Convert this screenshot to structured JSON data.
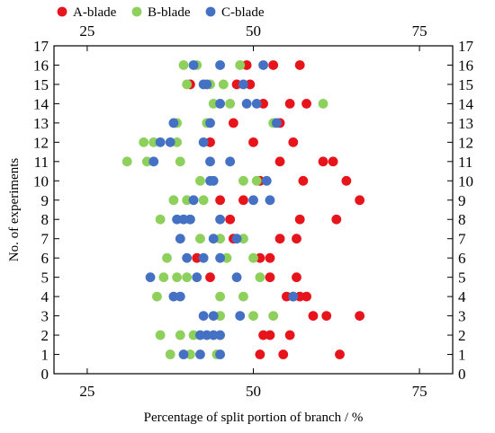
{
  "chart_data": {
    "type": "scatter",
    "xlabel": "Percentage of split portion of branch / %",
    "ylabel": "No. of experiments",
    "xlim": [
      20,
      80
    ],
    "ylim": [
      0,
      17
    ],
    "x_ticks": [
      25,
      50,
      75
    ],
    "y_ticks": [
      0,
      1,
      2,
      3,
      4,
      5,
      6,
      7,
      8,
      9,
      10,
      11,
      12,
      13,
      14,
      15,
      16,
      17
    ],
    "legend_position": "top",
    "grid": false,
    "mirrored_axes": true,
    "series": [
      {
        "name": "A-blade",
        "color": "#e8141b",
        "points": [
          [
            51,
            1
          ],
          [
            54.5,
            1
          ],
          [
            63,
            1
          ],
          [
            51.5,
            2
          ],
          [
            52.5,
            2
          ],
          [
            55.5,
            2
          ],
          [
            59,
            3
          ],
          [
            61,
            3
          ],
          [
            66,
            3
          ],
          [
            55,
            4
          ],
          [
            56,
            4
          ],
          [
            57,
            4
          ],
          [
            58,
            4
          ],
          [
            43.5,
            5
          ],
          [
            52.5,
            5
          ],
          [
            56.5,
            5
          ],
          [
            41.5,
            6
          ],
          [
            51,
            6
          ],
          [
            52.5,
            6
          ],
          [
            47,
            7
          ],
          [
            54,
            7
          ],
          [
            56.5,
            7
          ],
          [
            46.5,
            8
          ],
          [
            57,
            8
          ],
          [
            62.5,
            8
          ],
          [
            45,
            9
          ],
          [
            48.5,
            9
          ],
          [
            66,
            9
          ],
          [
            51,
            10
          ],
          [
            57.5,
            10
          ],
          [
            64,
            10
          ],
          [
            54,
            11
          ],
          [
            60.5,
            11
          ],
          [
            62,
            11
          ],
          [
            43.5,
            12
          ],
          [
            50,
            12
          ],
          [
            56,
            12
          ],
          [
            47,
            13
          ],
          [
            54,
            13
          ],
          [
            51.5,
            14
          ],
          [
            55.5,
            14
          ],
          [
            58,
            14
          ],
          [
            40.5,
            15
          ],
          [
            47.5,
            15
          ],
          [
            49.5,
            15
          ],
          [
            49,
            16
          ],
          [
            53,
            16
          ],
          [
            57,
            16
          ]
        ]
      },
      {
        "name": "B-blade",
        "color": "#8dd05c",
        "points": [
          [
            37.5,
            1
          ],
          [
            40.5,
            1
          ],
          [
            44.5,
            1
          ],
          [
            36,
            2
          ],
          [
            39,
            2
          ],
          [
            41,
            2
          ],
          [
            45,
            3
          ],
          [
            50,
            3
          ],
          [
            53,
            3
          ],
          [
            35.5,
            4
          ],
          [
            45,
            4
          ],
          [
            48.5,
            4
          ],
          [
            36.5,
            5
          ],
          [
            38.5,
            5
          ],
          [
            40,
            5
          ],
          [
            51,
            5
          ],
          [
            37,
            6
          ],
          [
            46,
            6
          ],
          [
            50,
            6
          ],
          [
            42,
            7
          ],
          [
            45,
            7
          ],
          [
            48.5,
            7
          ],
          [
            36,
            8
          ],
          [
            39.5,
            8
          ],
          [
            40.5,
            8
          ],
          [
            38,
            9
          ],
          [
            40,
            9
          ],
          [
            42.5,
            9
          ],
          [
            42,
            10
          ],
          [
            48.5,
            10
          ],
          [
            50.5,
            10
          ],
          [
            31,
            11
          ],
          [
            34,
            11
          ],
          [
            39,
            11
          ],
          [
            33.5,
            12
          ],
          [
            35,
            12
          ],
          [
            38.5,
            12
          ],
          [
            38.5,
            13
          ],
          [
            43,
            13
          ],
          [
            53,
            13
          ],
          [
            44,
            14
          ],
          [
            46.5,
            14
          ],
          [
            60.5,
            14
          ],
          [
            40,
            15
          ],
          [
            43.5,
            15
          ],
          [
            45.5,
            15
          ],
          [
            39.5,
            16
          ],
          [
            41.5,
            16
          ],
          [
            48,
            16
          ]
        ]
      },
      {
        "name": "C-blade",
        "color": "#4571c4",
        "points": [
          [
            39.5,
            1
          ],
          [
            42,
            1
          ],
          [
            45,
            1
          ],
          [
            42,
            2
          ],
          [
            43,
            2
          ],
          [
            44,
            2
          ],
          [
            45,
            2
          ],
          [
            42.5,
            3
          ],
          [
            44,
            3
          ],
          [
            48,
            3
          ],
          [
            38,
            4
          ],
          [
            39,
            4
          ],
          [
            56,
            4
          ],
          [
            34.5,
            5
          ],
          [
            41.5,
            5
          ],
          [
            47.5,
            5
          ],
          [
            40,
            6
          ],
          [
            42.5,
            6
          ],
          [
            45,
            6
          ],
          [
            39,
            7
          ],
          [
            44,
            7
          ],
          [
            47.5,
            7
          ],
          [
            38.5,
            8
          ],
          [
            39.5,
            8
          ],
          [
            40.5,
            8
          ],
          [
            45,
            8
          ],
          [
            41,
            9
          ],
          [
            50,
            9
          ],
          [
            52.5,
            9
          ],
          [
            43.5,
            10
          ],
          [
            44,
            10
          ],
          [
            52,
            10
          ],
          [
            35,
            11
          ],
          [
            43.5,
            11
          ],
          [
            46.5,
            11
          ],
          [
            36,
            12
          ],
          [
            37.5,
            12
          ],
          [
            42.5,
            12
          ],
          [
            38,
            13
          ],
          [
            43.5,
            13
          ],
          [
            53.5,
            13
          ],
          [
            45,
            14
          ],
          [
            49,
            14
          ],
          [
            50.5,
            14
          ],
          [
            42.5,
            15
          ],
          [
            43,
            15
          ],
          [
            48.5,
            15
          ],
          [
            41,
            16
          ],
          [
            45,
            16
          ],
          [
            51.5,
            16
          ]
        ]
      }
    ]
  }
}
